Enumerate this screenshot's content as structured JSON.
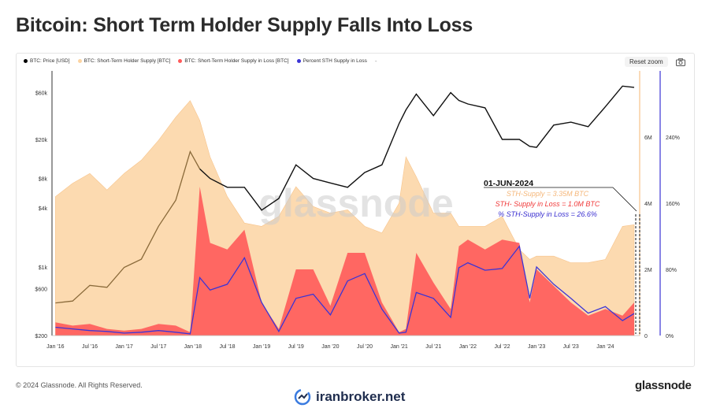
{
  "title": "Bitcoin: Short Term Holder Supply Falls Into Loss",
  "legend": [
    {
      "label": "BTC: Price [USD]",
      "color": "#000000"
    },
    {
      "label": "BTC: Short-Term Holder Supply [BTC]",
      "color": "#fcd4a2"
    },
    {
      "label": "BTC: Short-Term Holder Supply in Loss [BTC]",
      "color": "#ff5a5a"
    },
    {
      "label": "Percent STH Supply in Loss",
      "color": "#3b34d6"
    }
  ],
  "toolbar": {
    "reset_zoom": "Reset zoom"
  },
  "watermark": "glassnode",
  "annotation": {
    "date": "01-JUN-2024",
    "supply": "STH-Supply = 3.35M BTC",
    "loss": "STH- Supply in Loss = 1.0M BTC",
    "percent": "% STH-Supply in Loss = 26.6%",
    "supply_color": "#f5b77a",
    "loss_color": "#f03a3a",
    "percent_color": "#3a2fd0"
  },
  "footer": {
    "copyright": "© 2024 Glassnode. All Rights Reserved.",
    "brand_right": "glassnode",
    "brand_center": "iranbroker.net"
  },
  "chart_data": {
    "type": "area",
    "x_tick_labels": [
      "Jan '16",
      "Jul '16",
      "Jan '17",
      "Jul '17",
      "Jan '18",
      "Jul '18",
      "Jan '19",
      "Jul '19",
      "Jan '20",
      "Jul '20",
      "Jan '21",
      "Jul '21",
      "Jan '22",
      "Jul '22",
      "Jan '23",
      "Jul '23",
      "Jan '24"
    ],
    "price_axis": {
      "scale": "log",
      "ticks": [
        200,
        600,
        1000,
        4000,
        8000,
        20000,
        60000
      ],
      "tick_labels": [
        "$200",
        "$600",
        "$1k",
        "$4k",
        "$8k",
        "$20k",
        "$60k"
      ],
      "range": [
        200,
        100000
      ]
    },
    "supply_axis": {
      "ticks": [
        0,
        2000000,
        4000000,
        6000000
      ],
      "tick_labels": [
        "0",
        "2M",
        "4M",
        "6M"
      ],
      "range": [
        0,
        8000000
      ]
    },
    "percent_axis": {
      "ticks": [
        0,
        80,
        160,
        240
      ],
      "tick_labels": [
        "0%",
        "80%",
        "160%",
        "240%"
      ],
      "range": [
        0,
        320
      ]
    },
    "x": [
      2016.0,
      2016.25,
      2016.5,
      2016.75,
      2017.0,
      2017.25,
      2017.5,
      2017.75,
      2017.96,
      2018.1,
      2018.25,
      2018.5,
      2018.75,
      2019.0,
      2019.25,
      2019.5,
      2019.75,
      2020.0,
      2020.25,
      2020.5,
      2020.75,
      2021.0,
      2021.1,
      2021.25,
      2021.5,
      2021.75,
      2021.87,
      2022.0,
      2022.25,
      2022.5,
      2022.75,
      2022.9,
      2023.0,
      2023.25,
      2023.5,
      2023.75,
      2024.0,
      2024.25,
      2024.42
    ],
    "series": [
      {
        "name": "BTC: Price [USD]",
        "values": [
          430,
          450,
          650,
          620,
          990,
          1200,
          2600,
          4800,
          15000,
          10000,
          8000,
          6500,
          6500,
          3800,
          5000,
          11000,
          8000,
          7200,
          6500,
          9200,
          11000,
          29000,
          40000,
          58000,
          35000,
          60000,
          50000,
          46000,
          42000,
          20000,
          20000,
          17000,
          16600,
          28000,
          30000,
          27000,
          43000,
          70000,
          68000
        ]
      },
      {
        "name": "BTC: Short-Term Holder Supply [BTC]",
        "values": [
          4200000,
          4600000,
          4900000,
          4400000,
          4900000,
          5300000,
          5900000,
          6600000,
          7100000,
          6500000,
          5400000,
          4200000,
          3400000,
          3300000,
          3600000,
          4500000,
          3900000,
          3700000,
          3800000,
          3300000,
          3100000,
          4000000,
          5400000,
          4800000,
          3700000,
          3700000,
          3300000,
          3300000,
          3300000,
          3600000,
          2600000,
          2300000,
          2400000,
          2400000,
          2200000,
          2200000,
          2300000,
          3300000,
          3350000
        ]
      },
      {
        "name": "BTC: Short-Term Holder Supply in Loss [BTC]",
        "values": [
          400000,
          300000,
          350000,
          200000,
          150000,
          200000,
          350000,
          300000,
          100000,
          4500000,
          2800000,
          2600000,
          3200000,
          1000000,
          200000,
          2000000,
          2000000,
          900000,
          2500000,
          2500000,
          1000000,
          100000,
          200000,
          2500000,
          1600000,
          800000,
          2700000,
          2900000,
          2600000,
          2900000,
          2800000,
          1000000,
          2000000,
          1500000,
          1000000,
          600000,
          800000,
          600000,
          1000000
        ]
      },
      {
        "name": "Percent STH Supply in Loss",
        "values": [
          10,
          8,
          6,
          5,
          3,
          4,
          6,
          4,
          2,
          70,
          55,
          62,
          94,
          40,
          5,
          45,
          50,
          25,
          66,
          75,
          32,
          3,
          4,
          52,
          45,
          22,
          82,
          88,
          79,
          81,
          108,
          45,
          83,
          62,
          45,
          27,
          35,
          18,
          26.6
        ]
      }
    ]
  }
}
